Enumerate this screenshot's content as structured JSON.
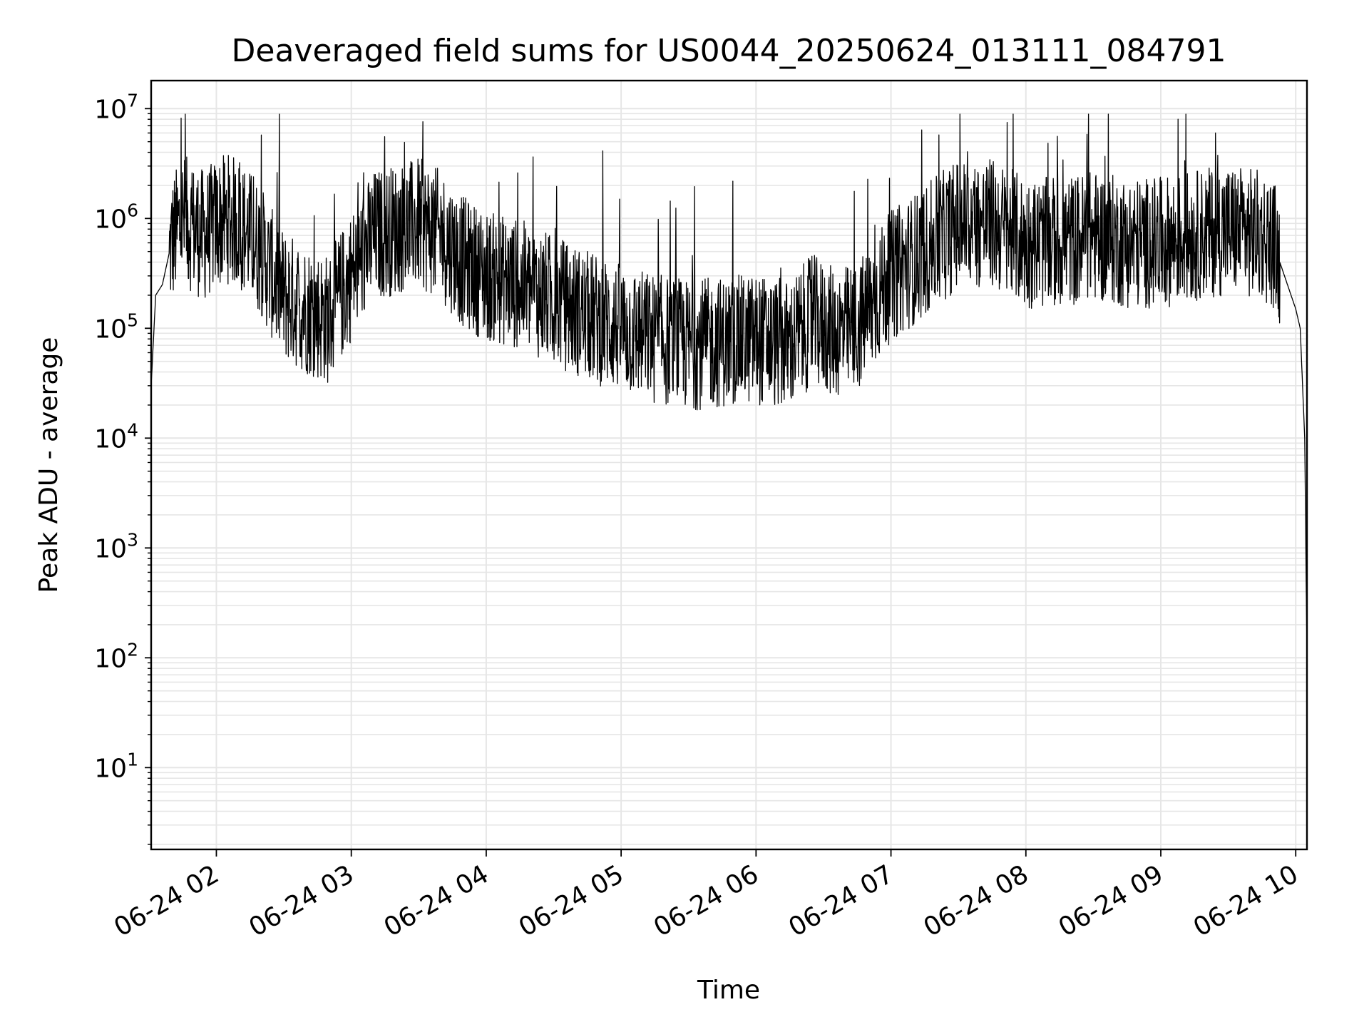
{
  "chart_data": {
    "type": "line",
    "title": "Deaveraged field sums for US0044_20250624_013111_084791",
    "xlabel": "Time",
    "ylabel": "Peak ADU - average",
    "yscale": "log",
    "ylim": [
      1.8,
      18000000
    ],
    "xlim": [
      "06-24 01:31",
      "06-24 10:05"
    ],
    "grid": true,
    "line_color": "#000000",
    "grid_color": "#e6e6e6",
    "x_ticks": [
      "06-24 02",
      "06-24 03",
      "06-24 04",
      "06-24 05",
      "06-24 06",
      "06-24 07",
      "06-24 08",
      "06-24 09",
      "06-24 10"
    ],
    "y_ticks": [
      {
        "base": "10",
        "exp": "1"
      },
      {
        "base": "10",
        "exp": "2"
      },
      {
        "base": "10",
        "exp": "3"
      },
      {
        "base": "10",
        "exp": "4"
      },
      {
        "base": "10",
        "exp": "5"
      },
      {
        "base": "10",
        "exp": "6"
      },
      {
        "base": "10",
        "exp": "7"
      }
    ],
    "series": [
      {
        "x": [
          "06-24 01:31",
          "06-24 01:33",
          "06-24 01:36",
          "06-24 01:40",
          "06-24 01:45",
          "06-24 01:50",
          "06-24 01:55",
          "06-24 02:00",
          "06-24 02:05",
          "06-24 02:10",
          "06-24 02:15",
          "06-24 02:20",
          "06-24 02:25",
          "06-24 02:30",
          "06-24 02:40",
          "06-24 02:50",
          "06-24 03:00",
          "06-24 03:10",
          "06-24 03:20",
          "06-24 03:30",
          "06-24 03:40",
          "06-24 03:50",
          "06-24 04:00",
          "06-24 04:15",
          "06-24 04:30",
          "06-24 04:45",
          "06-24 05:00",
          "06-24 05:15",
          "06-24 05:30",
          "06-24 05:45",
          "06-24 06:00",
          "06-24 06:15",
          "06-24 06:25",
          "06-24 06:35",
          "06-24 06:45",
          "06-24 07:00",
          "06-24 07:15",
          "06-24 07:30",
          "06-24 07:45",
          "06-24 08:00",
          "06-24 08:15",
          "06-24 08:30",
          "06-24 08:45",
          "06-24 09:00",
          "06-24 09:15",
          "06-24 09:30",
          "06-24 09:45",
          "06-24 09:50",
          "06-24 09:55",
          "06-24 10:00",
          "06-24 10:02",
          "06-24 10:04",
          "06-24 10:05"
        ],
        "values": [
          30000,
          200000,
          250000,
          600000,
          1000000,
          800000,
          700000,
          900000,
          1000000,
          900000,
          700000,
          500000,
          300000,
          200000,
          150000,
          120000,
          300000,
          700000,
          800000,
          900000,
          700000,
          400000,
          300000,
          250000,
          180000,
          130000,
          100000,
          80000,
          70000,
          75000,
          80000,
          70000,
          120000,
          90000,
          100000,
          300000,
          500000,
          900000,
          900000,
          600000,
          600000,
          700000,
          600000,
          600000,
          700000,
          800000,
          700000,
          600000,
          300000,
          150000,
          100000,
          10000,
          100
        ]
      }
    ]
  }
}
